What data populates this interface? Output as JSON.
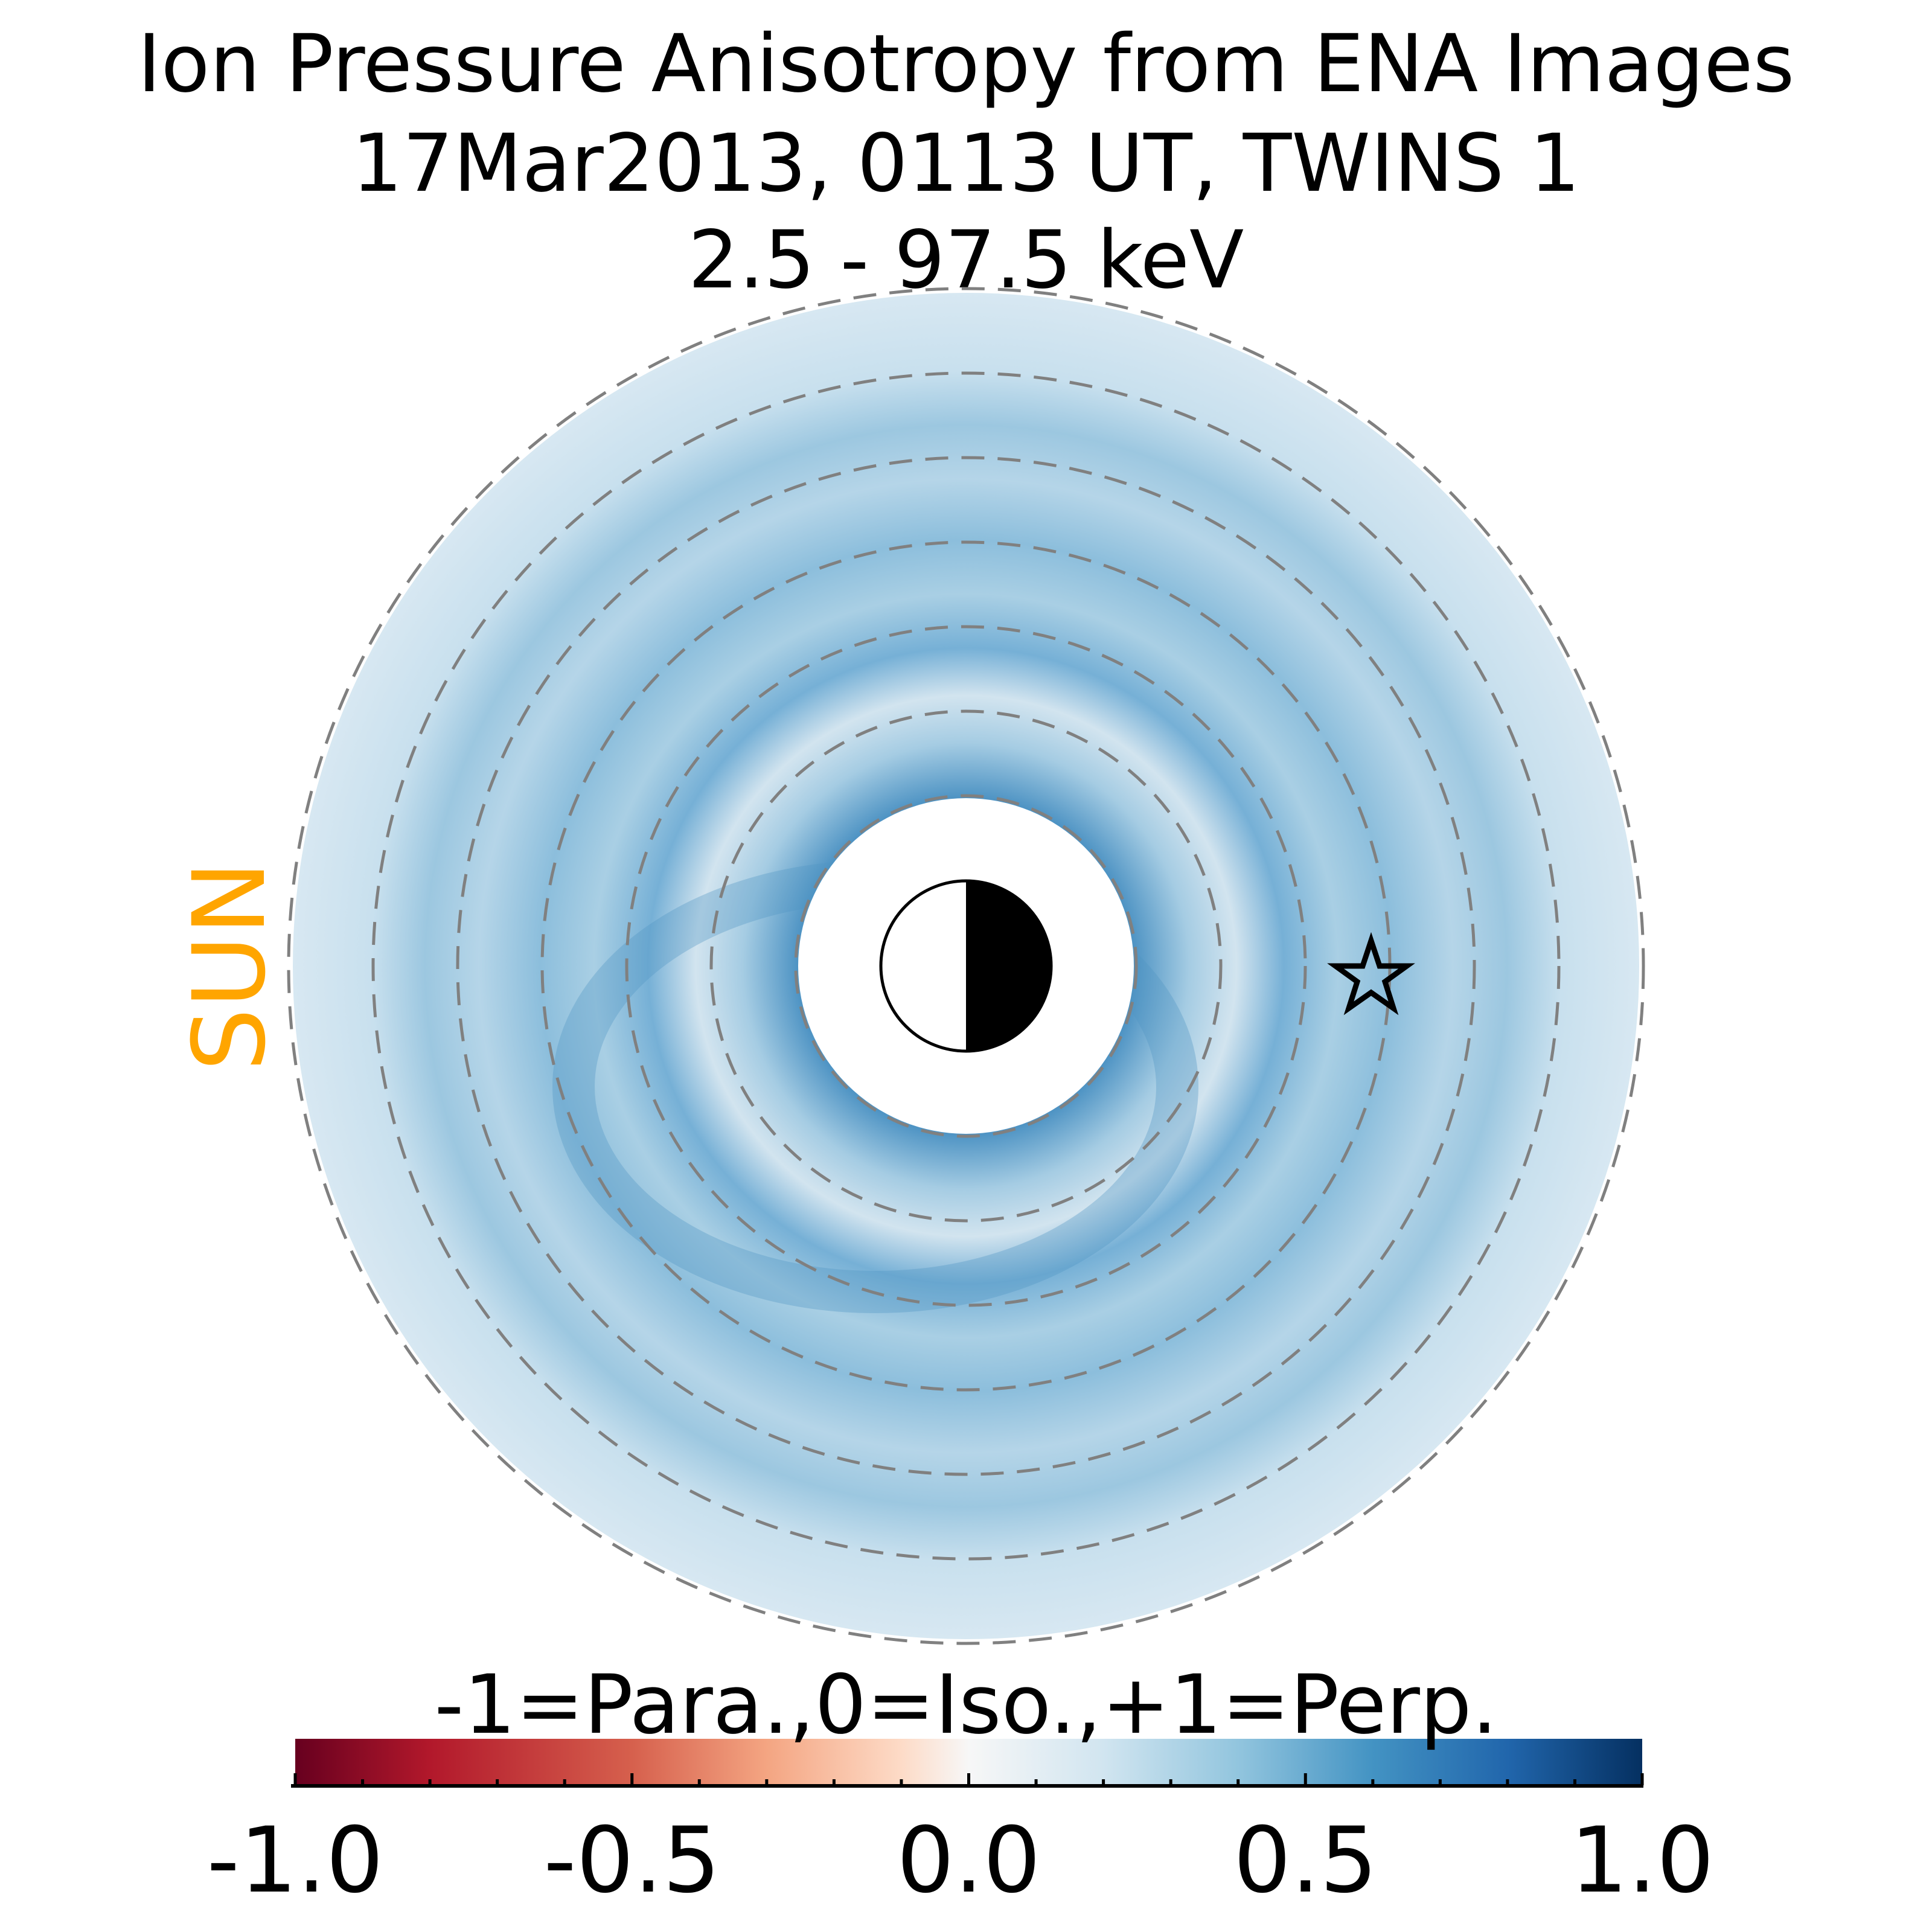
{
  "title": {
    "line1": "Ion Pressure Anisotropy from  ENA Images",
    "line2": "17Mar2013, 0113 UT,  TWINS 1",
    "line3": "2.5 - 97.5 keV"
  },
  "sun_label": "SUN",
  "sun_color": "#ffa500",
  "chart_data": {
    "type": "heatmap",
    "projection": "polar (equatorial plane, Sun to the left)",
    "colormap": "RdBu",
    "colorbar": {
      "label": "-1=Para.,0=Iso.,+1=Perp.",
      "range": [
        -1.0,
        1.0
      ],
      "ticks": [
        "-1.0",
        "-0.5",
        "0.0",
        "0.5",
        "1.0"
      ],
      "minor_tick_step": 0.1
    },
    "rings_count": 7,
    "markers": [
      "earth-day-night-symbol",
      "spacecraft-star"
    ],
    "value_summary": "mostly positive anisotropy 0.1-0.6 with enhanced perpendicular bands; peak ~0.7 near inner dayside"
  }
}
